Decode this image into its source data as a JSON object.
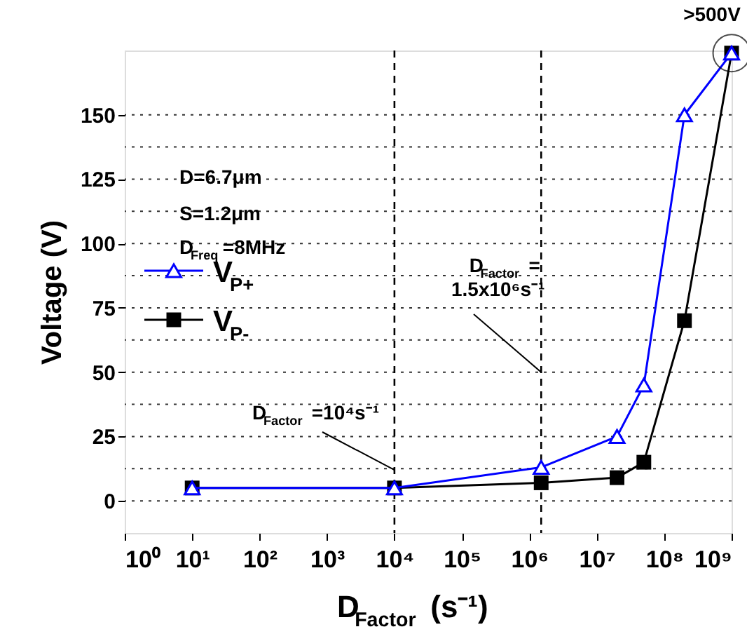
{
  "chart_data": {
    "type": "line",
    "xlabel": "D$_{Factor}$ (s⁻¹)",
    "ylabel": "Voltage (V)",
    "log": "x",
    "xlim": [
      1,
      1000000000
    ],
    "ylim": [
      -12.5,
      175
    ],
    "xticks": [
      {
        "value": 1,
        "label": "10⁰"
      },
      {
        "value": 10,
        "label": "10¹"
      },
      {
        "value": 100,
        "label": "10²"
      },
      {
        "value": 1000,
        "label": "10³"
      },
      {
        "value": 10000,
        "label": "10⁴"
      },
      {
        "value": 100000,
        "label": "10⁵"
      },
      {
        "value": 1000000,
        "label": "10⁶"
      },
      {
        "value": 10000000,
        "label": "10⁷"
      },
      {
        "value": 100000000,
        "label": "10⁸"
      },
      {
        "value": 1000000000,
        "label": "10⁹"
      }
    ],
    "yticks": [
      0,
      {
        "value": 12.5,
        "label": null
      },
      25,
      {
        "value": 37.5,
        "label": null
      },
      50,
      {
        "value": 62.5,
        "label": null
      },
      75,
      {
        "value": 87.5,
        "label": null
      },
      100,
      {
        "value": 112.5,
        "label": null
      },
      125,
      {
        "value": 137.5,
        "label": null
      },
      150
    ],
    "grid": "y",
    "legend": "left",
    "x": [
      10,
      10000,
      1500000,
      20000000,
      50000000,
      200000000,
      1000000000
    ],
    "series": [
      {
        "name": "V$_{P+}$",
        "color": "#0000ff",
        "marker": "triangle",
        "values": [
          5,
          5,
          13,
          25,
          45,
          150,
          174
        ]
      },
      {
        "name": "V$_{P-}$",
        "color": "#000000",
        "marker": "square",
        "values": [
          5,
          5,
          7,
          9,
          15,
          70,
          174
        ]
      }
    ],
    "ref_lines": [
      {
        "axis": "x",
        "value": 10000,
        "line_style": "dashed",
        "color": "#000000"
      },
      {
        "axis": "x",
        "value": 1500000,
        "line_style": "dashed",
        "color": "#000000"
      }
    ],
    "annotations": [
      "D=6.7μm",
      "S=1.2μm",
      "D$_{Freq}$=8MHz",
      {
        "text": ">500V",
        "x": 1000000000,
        "y": 174
      },
      {
        "text": "D$_{Factor}$=10⁴s⁻¹",
        "x": 10000,
        "y": 12
      },
      {
        "text": "D$_{Factor}$=\n1.5x10⁶s⁻¹",
        "x": 1500000,
        "y": 50
      }
    ]
  }
}
